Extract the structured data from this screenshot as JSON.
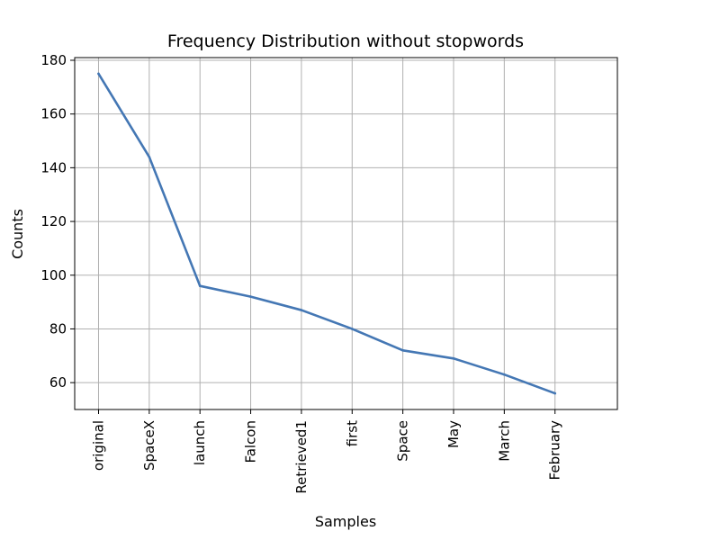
{
  "chart_data": {
    "type": "line",
    "title": "Frequency Distribution without stopwords",
    "xlabel": "Samples",
    "ylabel": "Counts",
    "categories": [
      "original",
      "SpaceX",
      "launch",
      "Falcon",
      "Retrieved1",
      "first",
      "Space",
      "May",
      "March",
      "February"
    ],
    "series": [
      {
        "values": [
          175,
          144,
          96,
          92,
          87,
          80,
          72,
          69,
          63,
          56
        ]
      }
    ],
    "ylim": [
      50,
      181
    ],
    "yticks": [
      60,
      80,
      100,
      120,
      140,
      160,
      180
    ],
    "grid": true,
    "line_color": "#4477b4"
  }
}
